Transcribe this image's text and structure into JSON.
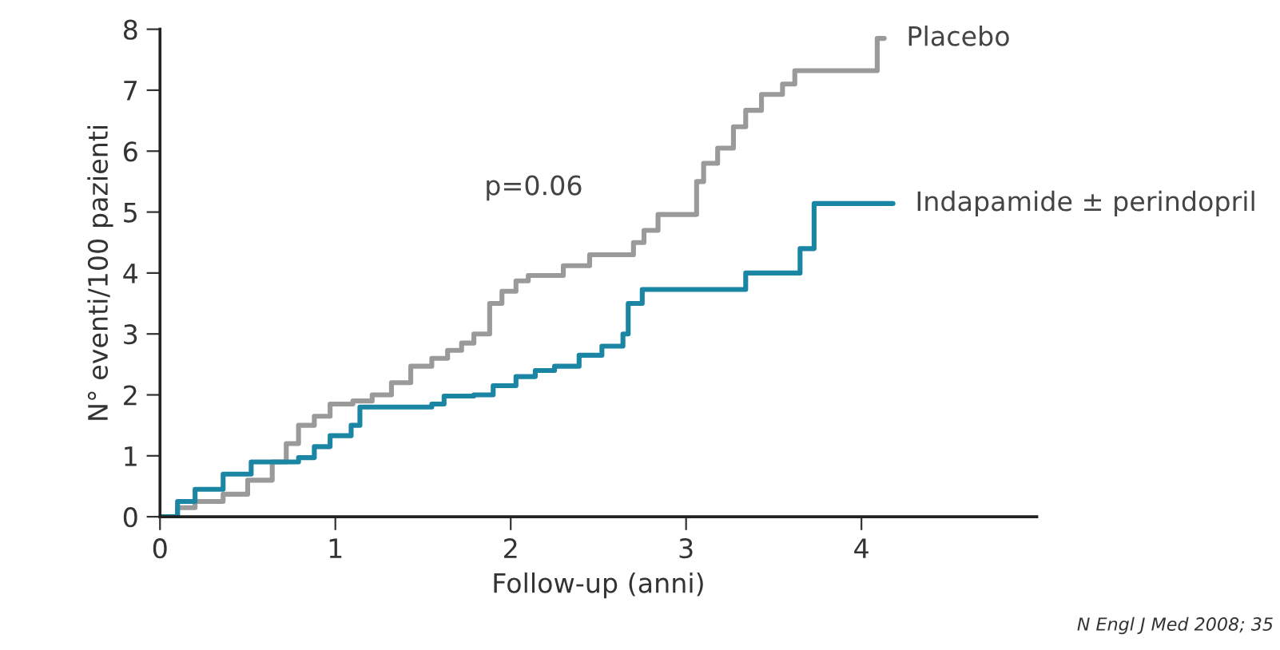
{
  "chart_data": {
    "type": "step",
    "xlabel": "Follow-up (anni)",
    "ylabel": "N° eventi/100 pazienti",
    "xlim": [
      0,
      5
    ],
    "ylim": [
      0,
      8
    ],
    "xticks": [
      0,
      1,
      2,
      3,
      4
    ],
    "yticks": [
      0,
      1,
      2,
      3,
      4,
      5,
      6,
      7,
      8
    ],
    "grid": false,
    "legend": false,
    "marker": "none",
    "line_style": "solid",
    "annotations": [
      "p=0.06",
      "N Engl J Med 2008; 35"
    ],
    "series": [
      {
        "name": "Placebo",
        "color": "#9a9a9a",
        "x": [
          0,
          0.1,
          0.2,
          0.36,
          0.5,
          0.64,
          0.72,
          0.79,
          0.88,
          0.97,
          1.1,
          1.21,
          1.32,
          1.43,
          1.55,
          1.64,
          1.72,
          1.79,
          1.88,
          1.95,
          2.03,
          2.1,
          2.3,
          2.45,
          2.7,
          2.76,
          2.84,
          3.06,
          3.1,
          3.18,
          3.27,
          3.34,
          3.43,
          3.55,
          3.62,
          4.09,
          4.13
        ],
        "values": [
          0,
          0.15,
          0.25,
          0.37,
          0.6,
          0.9,
          1.2,
          1.5,
          1.65,
          1.85,
          1.9,
          2.0,
          2.2,
          2.47,
          2.6,
          2.73,
          2.85,
          3.0,
          3.5,
          3.7,
          3.87,
          3.96,
          4.12,
          4.3,
          4.5,
          4.7,
          4.96,
          5.5,
          5.8,
          6.05,
          6.4,
          6.67,
          6.93,
          7.1,
          7.32,
          7.85,
          7.85
        ]
      },
      {
        "name": "Indapamide ± perindopril",
        "color": "#1b86a4",
        "x": [
          0,
          0.1,
          0.2,
          0.36,
          0.52,
          0.79,
          0.88,
          0.97,
          1.09,
          1.14,
          1.55,
          1.62,
          1.79,
          1.9,
          2.03,
          2.14,
          2.25,
          2.39,
          2.52,
          2.64,
          2.67,
          2.75,
          3.34,
          3.65,
          3.73,
          4.18
        ],
        "values": [
          0,
          0.25,
          0.45,
          0.7,
          0.9,
          0.97,
          1.15,
          1.33,
          1.5,
          1.8,
          1.85,
          1.98,
          2.0,
          2.15,
          2.3,
          2.4,
          2.47,
          2.65,
          2.8,
          3.0,
          3.5,
          3.73,
          4.0,
          4.4,
          5.14,
          5.14
        ]
      }
    ]
  }
}
